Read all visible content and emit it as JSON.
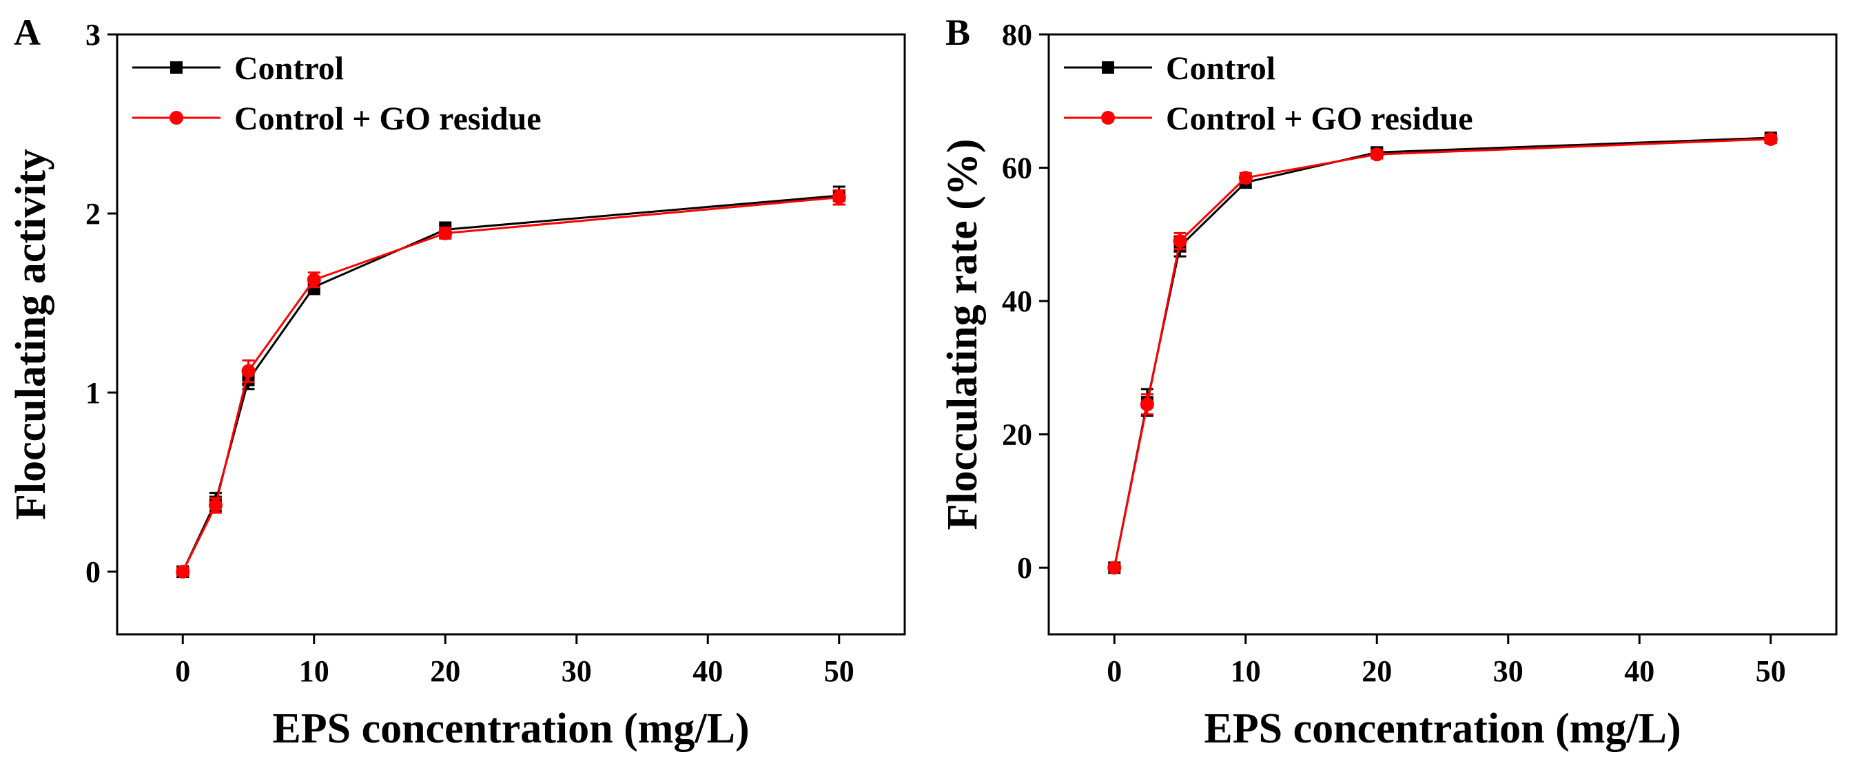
{
  "chart_data": [
    {
      "type": "line",
      "panel_label": "A",
      "xlabel": "EPS concentration (mg/L)",
      "ylabel": "Flocculating activity",
      "xlim": [
        -5,
        55
      ],
      "ylim": [
        -0.35,
        3
      ],
      "xticks": [
        0,
        10,
        20,
        30,
        40,
        50
      ],
      "yticks": [
        0,
        1,
        2,
        3
      ],
      "x": [
        0,
        2.5,
        5,
        10,
        20,
        50
      ],
      "series": [
        {
          "name": "Control",
          "color": "#000000",
          "marker": "square",
          "values": [
            0,
            0.39,
            1.07,
            1.59,
            1.91,
            2.1
          ],
          "errors": [
            0.02,
            0.05,
            0.05,
            0.04,
            0.04,
            0.05
          ]
        },
        {
          "name": "Control + GO residue",
          "color": "#ff0000",
          "marker": "circle",
          "values": [
            0,
            0.37,
            1.12,
            1.63,
            1.89,
            2.09
          ],
          "errors": [
            0.02,
            0.04,
            0.06,
            0.04,
            0.03,
            0.04
          ]
        }
      ],
      "legend": "top-left",
      "grid": false
    },
    {
      "type": "line",
      "panel_label": "B",
      "xlabel": "EPS concentration (mg/L)",
      "ylabel": "Flocculating rate (%)",
      "xlim": [
        -5,
        55
      ],
      "ylim": [
        -10,
        80
      ],
      "xticks": [
        0,
        10,
        20,
        30,
        40,
        50
      ],
      "yticks": [
        0,
        20,
        40,
        60,
        80
      ],
      "x": [
        0,
        2.5,
        5,
        10,
        20,
        50
      ],
      "series": [
        {
          "name": "Control",
          "color": "#000000",
          "marker": "square",
          "values": [
            0,
            24.8,
            48.2,
            57.8,
            62.3,
            64.5
          ],
          "errors": [
            0.3,
            2.0,
            1.5,
            0.8,
            0.6,
            0.6
          ]
        },
        {
          "name": "Control + GO residue",
          "color": "#ff0000",
          "marker": "circle",
          "values": [
            0,
            24.5,
            49.0,
            58.5,
            62.0,
            64.3
          ],
          "errors": [
            0.3,
            1.5,
            1.2,
            0.7,
            0.6,
            0.6
          ]
        }
      ],
      "legend": "top-left",
      "grid": false
    }
  ]
}
